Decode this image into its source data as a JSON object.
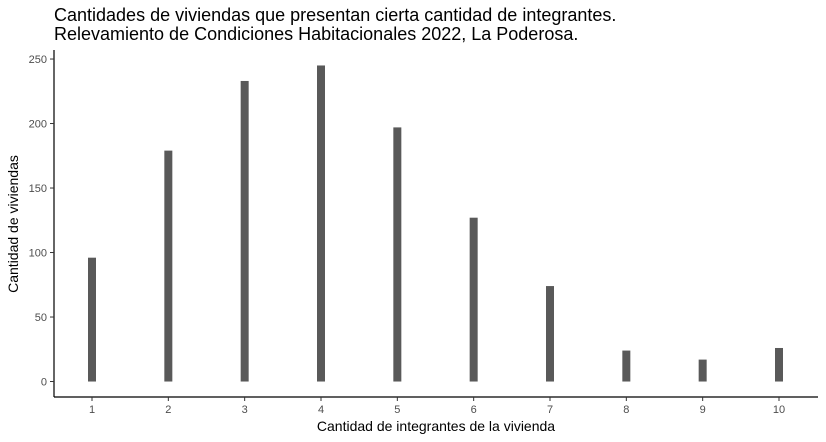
{
  "chart_data": {
    "type": "bar",
    "title": "Cantidades de viviendas que presentan cierta cantidad de integrantes.",
    "subtitle": "Relevamiento de Condiciones Habitacionales 2022, La Poderosa.",
    "xlabel": "Cantidad de integrantes de la vivienda",
    "ylabel": "Cantidad de viviendas",
    "categories": [
      "1",
      "2",
      "3",
      "4",
      "5",
      "6",
      "7",
      "8",
      "9",
      "10"
    ],
    "values": [
      96,
      179,
      233,
      245,
      197,
      127,
      74,
      24,
      17,
      26
    ],
    "ylim": [
      -12,
      257
    ],
    "yticks": [
      0,
      50,
      100,
      150,
      200,
      250
    ],
    "grid": false,
    "legend": "none",
    "bar_color": "#595959"
  }
}
